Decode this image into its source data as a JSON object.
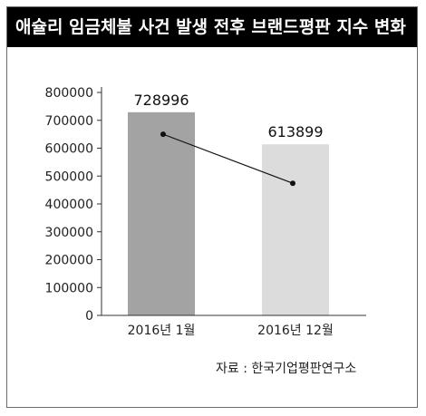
{
  "title": "애슐리 임금체불 사건 발생 전후 브랜드평판 지수 변화",
  "source": "자료 : 한국기업평판연구소",
  "colors": {
    "title_bg": "#000000",
    "title_text": "#ffffff",
    "bar_1": "#a3a3a3",
    "bar_2": "#dcdcdc",
    "line": "#111111"
  },
  "chart_data": {
    "type": "bar",
    "title": "애슐리 임금체불 사건 발생 전후 브랜드평판 지수 변화",
    "categories": [
      "2016년 1월",
      "2016년 12월"
    ],
    "values": [
      728996,
      613899
    ],
    "data_labels": [
      "728996",
      "613899"
    ],
    "yticks": [
      0,
      100000,
      200000,
      300000,
      400000,
      500000,
      600000,
      700000,
      800000
    ],
    "ytick_labels": [
      "0",
      "100000",
      "200000",
      "300000",
      "400000",
      "500000",
      "600000",
      "700000",
      "800000"
    ],
    "ylim": [
      0,
      800000
    ],
    "grid": false,
    "legend": "none",
    "overlay_line": {
      "type": "line",
      "values": [
        650000,
        474000
      ]
    }
  }
}
